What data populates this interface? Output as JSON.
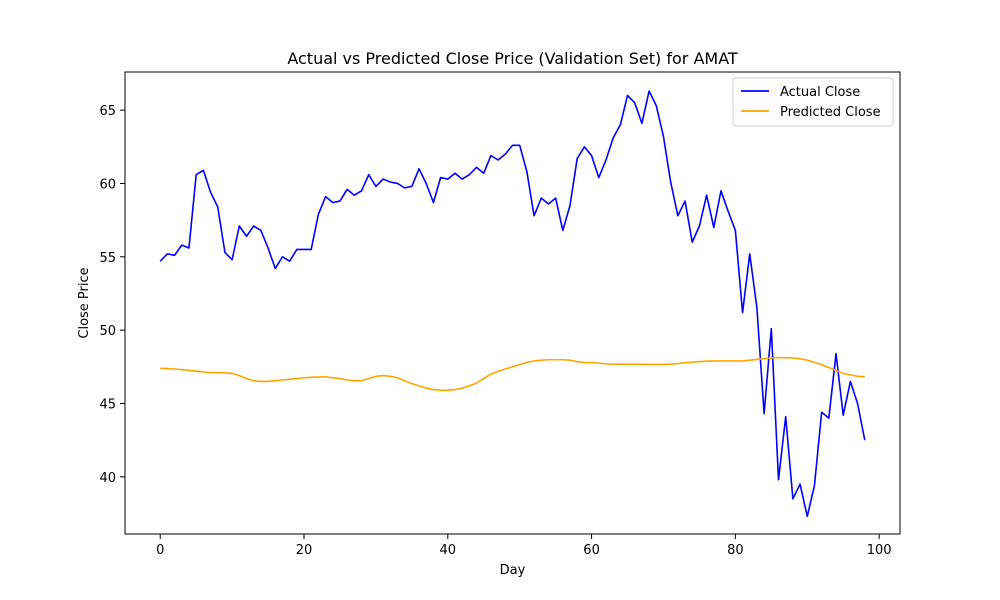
{
  "chart_data": {
    "type": "line",
    "title": "Actual vs Predicted Close Price (Validation Set) for AMAT",
    "xlabel": "Day",
    "ylabel": "Close Price",
    "xlim": [
      -4.9,
      102.9
    ],
    "ylim": [
      36.1,
      67.6
    ],
    "xticks": [
      0,
      20,
      40,
      60,
      80,
      100
    ],
    "yticks": [
      40,
      45,
      50,
      55,
      60,
      65
    ],
    "grid": false,
    "legend_position": "upper-right",
    "series": [
      {
        "name": "Actual Close",
        "color": "#0000ff",
        "values": [
          54.7,
          55.2,
          55.1,
          55.8,
          55.6,
          60.6,
          60.9,
          59.4,
          58.4,
          55.3,
          54.8,
          57.1,
          56.4,
          57.1,
          56.8,
          55.6,
          54.2,
          55.0,
          54.7,
          55.5,
          55.5,
          55.5,
          57.9,
          59.1,
          58.7,
          58.8,
          59.6,
          59.2,
          59.5,
          60.6,
          59.8,
          60.3,
          60.1,
          60.0,
          59.7,
          59.8,
          61.0,
          60.0,
          58.7,
          60.4,
          60.3,
          60.7,
          60.3,
          60.6,
          61.1,
          60.7,
          61.9,
          61.6,
          62.0,
          62.6,
          62.6,
          60.8,
          57.8,
          59.0,
          58.6,
          59.0,
          56.8,
          58.5,
          61.7,
          62.5,
          61.9,
          60.4,
          61.6,
          63.1,
          64.0,
          66.0,
          65.5,
          64.1,
          66.3,
          65.3,
          63.2,
          60.1,
          57.8,
          58.8,
          56.0,
          57.1,
          59.2,
          57.0,
          59.5,
          58.1,
          56.8,
          51.2,
          55.2,
          51.5,
          44.3,
          50.1,
          39.8,
          44.1,
          38.5,
          39.5,
          37.3,
          39.4,
          44.4,
          44.0,
          48.4,
          44.2,
          46.5,
          45.0,
          42.5
        ]
      },
      {
        "name": "Predicted Close",
        "color": "#ffa500",
        "values": [
          47.4,
          47.38,
          47.35,
          47.3,
          47.26,
          47.2,
          47.15,
          47.1,
          47.1,
          47.1,
          47.05,
          46.9,
          46.7,
          46.55,
          46.5,
          46.5,
          46.55,
          46.6,
          46.65,
          46.7,
          46.75,
          46.78,
          46.8,
          46.82,
          46.75,
          46.7,
          46.6,
          46.55,
          46.55,
          46.7,
          46.85,
          46.9,
          46.85,
          46.75,
          46.55,
          46.35,
          46.2,
          46.05,
          45.95,
          45.9,
          45.9,
          45.95,
          46.05,
          46.2,
          46.4,
          46.7,
          47.0,
          47.2,
          47.35,
          47.5,
          47.65,
          47.8,
          47.9,
          47.95,
          47.98,
          47.98,
          47.98,
          47.95,
          47.85,
          47.8,
          47.78,
          47.75,
          47.7,
          47.68,
          47.68,
          47.68,
          47.68,
          47.67,
          47.66,
          47.66,
          47.66,
          47.68,
          47.72,
          47.78,
          47.82,
          47.85,
          47.88,
          47.9,
          47.9,
          47.9,
          47.9,
          47.9,
          47.95,
          48.0,
          48.05,
          48.1,
          48.12,
          48.12,
          48.1,
          48.05,
          47.95,
          47.8,
          47.65,
          47.45,
          47.25,
          47.05,
          46.95,
          46.85,
          46.82
        ]
      }
    ]
  }
}
